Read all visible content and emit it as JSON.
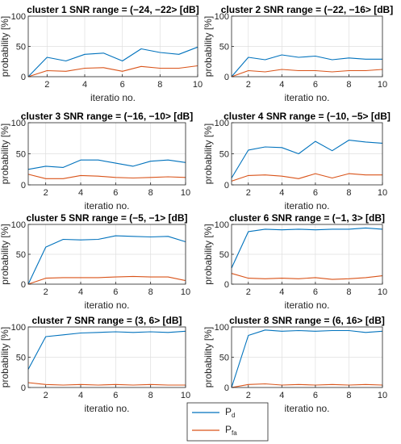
{
  "colors": {
    "pd": "#0072BD",
    "pfa": "#D95319",
    "axis": "#262626",
    "grid": "#dfdfdf"
  },
  "legend": {
    "pd_main": "P",
    "pd_sub": "d",
    "pfa_main": "P",
    "pfa_sub": "fa"
  },
  "chart_data": [
    {
      "type": "line",
      "title": "cluster 1 SNR range = (−24, −22> [dB]",
      "xlabel": "iteratio no.",
      "ylabel": "probability [%]",
      "xlim": [
        1,
        10
      ],
      "ylim": [
        0,
        100
      ],
      "xticks": [
        2,
        4,
        6,
        8,
        10
      ],
      "yticks": [
        0,
        50,
        100
      ],
      "grid": true,
      "x": [
        1,
        2,
        3,
        4,
        5,
        6,
        7,
        8,
        9,
        10
      ],
      "series": [
        {
          "name": "Pd",
          "values": [
            0,
            32,
            26,
            37,
            39,
            26,
            46,
            40,
            37,
            49
          ]
        },
        {
          "name": "Pfa",
          "values": [
            0,
            10,
            9,
            14,
            15,
            9,
            17,
            14,
            14,
            18
          ]
        }
      ]
    },
    {
      "type": "line",
      "title": "cluster 2 SNR range = (−22, −16> [dB]",
      "xlabel": "iteratio no.",
      "ylabel": "probability [%]",
      "xlim": [
        1,
        10
      ],
      "ylim": [
        0,
        100
      ],
      "xticks": [
        2,
        4,
        6,
        8,
        10
      ],
      "yticks": [
        0,
        50,
        100
      ],
      "grid": true,
      "x": [
        1,
        2,
        3,
        4,
        5,
        6,
        7,
        8,
        9,
        10
      ],
      "series": [
        {
          "name": "Pd",
          "values": [
            0,
            32,
            28,
            36,
            32,
            34,
            28,
            31,
            29,
            29
          ]
        },
        {
          "name": "Pfa",
          "values": [
            0,
            10,
            8,
            12,
            10,
            10,
            8,
            10,
            10,
            12
          ]
        }
      ]
    },
    {
      "type": "line",
      "title": "cluster 3 SNR range = (−16, −10> [dB]",
      "xlabel": "iteratio no.",
      "ylabel": "probability [%]",
      "xlim": [
        1,
        10
      ],
      "ylim": [
        0,
        100
      ],
      "xticks": [
        2,
        4,
        6,
        8,
        10
      ],
      "yticks": [
        0,
        50,
        100
      ],
      "grid": true,
      "x": [
        1,
        2,
        3,
        4,
        5,
        6,
        7,
        8,
        9,
        10
      ],
      "series": [
        {
          "name": "Pd",
          "values": [
            25,
            30,
            28,
            40,
            40,
            35,
            30,
            38,
            40,
            36
          ]
        },
        {
          "name": "Pfa",
          "values": [
            17,
            10,
            10,
            15,
            14,
            12,
            11,
            12,
            13,
            12
          ]
        }
      ]
    },
    {
      "type": "line",
      "title": "cluster 4 SNR range = (−10, −5> [dB]",
      "xlabel": "iteratio no.",
      "ylabel": "probability [%]",
      "xlim": [
        1,
        10
      ],
      "ylim": [
        0,
        100
      ],
      "xticks": [
        2,
        4,
        6,
        8,
        10
      ],
      "yticks": [
        0,
        50,
        100
      ],
      "grid": true,
      "x": [
        1,
        2,
        3,
        4,
        5,
        6,
        7,
        8,
        9,
        10
      ],
      "series": [
        {
          "name": "Pd",
          "values": [
            11,
            56,
            61,
            60,
            50,
            70,
            55,
            72,
            69,
            67
          ]
        },
        {
          "name": "Pfa",
          "values": [
            6,
            15,
            16,
            14,
            10,
            18,
            11,
            18,
            16,
            16
          ]
        }
      ]
    },
    {
      "type": "line",
      "title": "cluster 5 SNR range = (−5, −1> [dB]",
      "xlabel": "iteratio no.",
      "ylabel": "probability [%]",
      "xlim": [
        1,
        10
      ],
      "ylim": [
        0,
        100
      ],
      "xticks": [
        2,
        4,
        6,
        8,
        10
      ],
      "yticks": [
        0,
        50,
        100
      ],
      "grid": true,
      "x": [
        1,
        2,
        3,
        4,
        5,
        6,
        7,
        8,
        9,
        10
      ],
      "series": [
        {
          "name": "Pd",
          "values": [
            0,
            62,
            75,
            74,
            75,
            81,
            80,
            79,
            80,
            71
          ]
        },
        {
          "name": "Pfa",
          "values": [
            0,
            10,
            11,
            11,
            11,
            12,
            13,
            12,
            12,
            6
          ]
        }
      ]
    },
    {
      "type": "line",
      "title": "cluster 6 SNR range = (−1, 3> [dB]",
      "xlabel": "iteratio no.",
      "ylabel": "probability [%]",
      "xlim": [
        1,
        10
      ],
      "ylim": [
        0,
        100
      ],
      "xticks": [
        2,
        4,
        6,
        8,
        10
      ],
      "yticks": [
        0,
        50,
        100
      ],
      "grid": true,
      "x": [
        1,
        2,
        3,
        4,
        5,
        6,
        7,
        8,
        9,
        10
      ],
      "series": [
        {
          "name": "Pd",
          "values": [
            27,
            88,
            92,
            91,
            92,
            91,
            92,
            92,
            94,
            92
          ]
        },
        {
          "name": "Pfa",
          "values": [
            18,
            10,
            9,
            10,
            9,
            11,
            8,
            9,
            11,
            14
          ]
        }
      ]
    },
    {
      "type": "line",
      "title": "cluster 7 SNR range = (3, 6> [dB]",
      "xlabel": "iteratio no.",
      "ylabel": "probability [%]",
      "xlim": [
        1,
        10
      ],
      "ylim": [
        0,
        100
      ],
      "xticks": [
        2,
        4,
        6,
        8,
        10
      ],
      "yticks": [
        0,
        50,
        100
      ],
      "grid": true,
      "x": [
        1,
        2,
        3,
        4,
        5,
        6,
        7,
        8,
        9,
        10
      ],
      "series": [
        {
          "name": "Pd",
          "values": [
            30,
            84,
            87,
            90,
            91,
            92,
            91,
            92,
            91,
            93
          ]
        },
        {
          "name": "Pfa",
          "values": [
            8,
            5,
            4,
            5,
            4,
            5,
            4,
            5,
            4,
            4
          ]
        }
      ]
    },
    {
      "type": "line",
      "title": "cluster 8 SNR range = (6, 16> [dB]",
      "xlabel": "iteratio no.",
      "ylabel": "probability [%]",
      "xlim": [
        1,
        10
      ],
      "ylim": [
        0,
        100
      ],
      "xticks": [
        2,
        4,
        6,
        8,
        10
      ],
      "yticks": [
        0,
        50,
        100
      ],
      "grid": true,
      "x": [
        1,
        2,
        3,
        4,
        5,
        6,
        7,
        8,
        9,
        10
      ],
      "series": [
        {
          "name": "Pd",
          "values": [
            0,
            86,
            95,
            93,
            94,
            93,
            94,
            94,
            91,
            93
          ]
        },
        {
          "name": "Pfa",
          "values": [
            0,
            5,
            6,
            4,
            5,
            4,
            5,
            4,
            5,
            4
          ]
        }
      ]
    }
  ]
}
